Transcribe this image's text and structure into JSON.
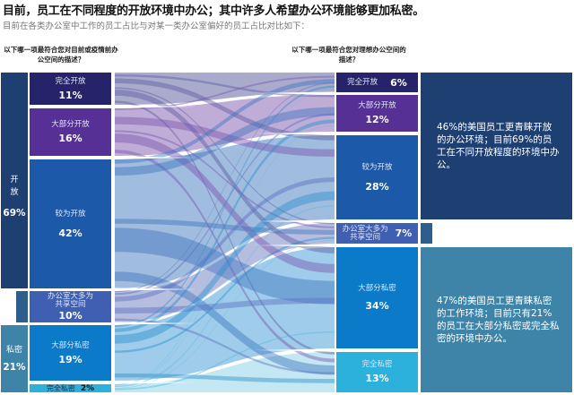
{
  "header": {
    "title": "目前，员工在不同程度的开放环境中办公；其中许多人希望办公环境能够更加私密。",
    "subtitle": "目前在各类办公室中工作的员工占比与对某一类办公室偏好的员工占比对比如下："
  },
  "left": {
    "question": "以下哪一项最符合您对目前或疫情前办公空间的描述？",
    "groups": [
      {
        "label": "开放",
        "label_lines": [
          "开",
          "放"
        ],
        "pct": "69%",
        "color": "#1e3f72"
      },
      {
        "label": "",
        "pct": "",
        "color": "#2d5f8e"
      },
      {
        "label": "私密",
        "pct": "21%",
        "color": "#3d84a8"
      }
    ],
    "items": [
      {
        "label": "完全开放",
        "pct": "11%",
        "value": 11,
        "color": "#25246a"
      },
      {
        "label": "大部分开放",
        "pct": "16%",
        "value": 16,
        "color": "#573095"
      },
      {
        "label": "较为开放",
        "pct": "42%",
        "value": 42,
        "color": "#1c59a8"
      },
      {
        "label": "办公室大多为共享空间",
        "label_lines": [
          "办公室大多为",
          "共享空间"
        ],
        "pct": "10%",
        "value": 10,
        "color": "#3f5fb2"
      },
      {
        "label": "大部分私密",
        "pct": "19%",
        "value": 19,
        "color": "#0b7bc9"
      },
      {
        "label": "完全私密",
        "pct": "2%",
        "value": 2,
        "color": "#2cb1dc"
      }
    ]
  },
  "right": {
    "question": "以下哪一项最符合您对理想办公空间的描述？",
    "items": [
      {
        "label": "完全开放",
        "pct": "6%",
        "value": 6,
        "color": "#25246a"
      },
      {
        "label": "大部分开放",
        "pct": "12%",
        "value": 12,
        "color": "#573095"
      },
      {
        "label": "较为开放",
        "pct": "28%",
        "value": 28,
        "color": "#1c59a8"
      },
      {
        "label": "办公室大多为共享空间",
        "label_lines": [
          "办公室大多为",
          "共享空间"
        ],
        "pct": "7%",
        "value": 7,
        "color": "#3f5fb2"
      },
      {
        "label": "大部分私密",
        "pct": "34%",
        "value": 34,
        "color": "#0b7bc9"
      },
      {
        "label": "完全私密",
        "pct": "13%",
        "value": 13,
        "color": "#2cb1dc"
      }
    ],
    "notes": [
      {
        "text": "46%的美国员工更青睐开放的办公环境；目前69%的员工在不同开放程度的环境中办公。",
        "color": "#1e3f72"
      },
      {
        "text": "",
        "color": "#2d5f8e"
      },
      {
        "text": "47%的美国员工更青睐私密的工作环境；目前只有21%的员工在大部分私密或完全私密的环境中办公。",
        "color": "#3d84a8"
      }
    ]
  },
  "chart_data": {
    "type": "sankey",
    "title": "目前，员工在不同程度的开放环境中办公；其中许多人希望办公环境能够更加私密。",
    "left_axis_label": "以下哪一项最符合您对目前或疫情前办公空间的描述？",
    "right_axis_label": "以下哪一项最符合您对理想办公空间的描述？",
    "left_nodes": [
      {
        "name": "完全开放",
        "value": 11
      },
      {
        "name": "大部分开放",
        "value": 16
      },
      {
        "name": "较为开放",
        "value": 42
      },
      {
        "name": "办公室大多为共享空间",
        "value": 10
      },
      {
        "name": "大部分私密",
        "value": 19
      },
      {
        "name": "完全私密",
        "value": 2
      }
    ],
    "right_nodes": [
      {
        "name": "完全开放",
        "value": 6
      },
      {
        "name": "大部分开放",
        "value": 12
      },
      {
        "name": "较为开放",
        "value": 28
      },
      {
        "name": "办公室大多为共享空间",
        "value": 7
      },
      {
        "name": "大部分私密",
        "value": 34
      },
      {
        "name": "完全私密",
        "value": 13
      }
    ],
    "left_groups": [
      {
        "name": "开放",
        "value": 69
      },
      {
        "name": "私密",
        "value": 21
      }
    ]
  }
}
